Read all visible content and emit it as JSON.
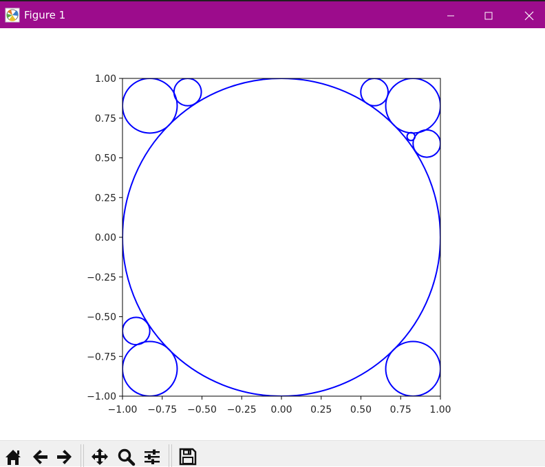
{
  "window": {
    "title": "Figure 1",
    "titlebar_color": "#9c0c8c",
    "minimize_label": "—",
    "maximize_label": "□",
    "close_label": "✕"
  },
  "toolbar": {
    "buttons": [
      {
        "name": "home-button",
        "icon": "home-icon"
      },
      {
        "name": "back-button",
        "icon": "arrow-left-icon"
      },
      {
        "name": "forward-button",
        "icon": "arrow-right-icon"
      },
      {
        "name": "pan-button",
        "icon": "move-icon"
      },
      {
        "name": "zoom-button",
        "icon": "magnifier-icon"
      },
      {
        "name": "configure-subplots-button",
        "icon": "sliders-icon"
      },
      {
        "name": "save-button",
        "icon": "floppy-disk-icon"
      }
    ]
  },
  "chart_data": {
    "type": "scatter",
    "title": "",
    "xlabel": "",
    "ylabel": "",
    "xlim": [
      -1.0,
      1.0
    ],
    "ylim": [
      -1.0,
      1.0
    ],
    "grid": false,
    "line_color": "#0000ff",
    "x_ticks": [
      "−1.00",
      "−0.75",
      "−0.50",
      "−0.25",
      "0.00",
      "0.25",
      "0.50",
      "0.75",
      "1.00"
    ],
    "y_ticks": [
      "1.00",
      "0.75",
      "0.50",
      "0.25",
      "0.00",
      "−0.25",
      "−0.50",
      "−0.75",
      "−1.00"
    ],
    "circles": [
      {
        "cx": 0.0,
        "cy": 0.0,
        "r": 1.0
      },
      {
        "cx": -0.828,
        "cy": 0.828,
        "r": 0.172
      },
      {
        "cx": 0.828,
        "cy": 0.828,
        "r": 0.172
      },
      {
        "cx": -0.828,
        "cy": -0.828,
        "r": 0.172
      },
      {
        "cx": 0.828,
        "cy": -0.828,
        "r": 0.172
      },
      {
        "cx": -0.59,
        "cy": 0.914,
        "r": 0.086
      },
      {
        "cx": 0.585,
        "cy": 0.914,
        "r": 0.086
      },
      {
        "cx": 0.914,
        "cy": 0.59,
        "r": 0.086
      },
      {
        "cx": -0.914,
        "cy": -0.59,
        "r": 0.086
      },
      {
        "cx": 0.815,
        "cy": 0.634,
        "r": 0.025
      }
    ]
  }
}
